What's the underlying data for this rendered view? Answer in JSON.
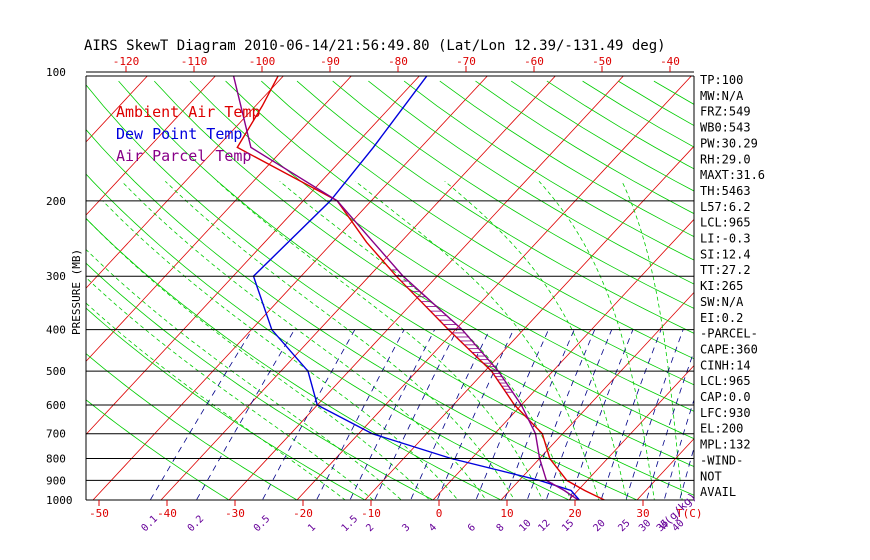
{
  "title": "AIRS SkewT Diagram 2010-06-14/21:56:49.80 (Lat/Lon 12.39/-131.49 deg)",
  "ylabel": "PRESSURE (MB)",
  "legend": [
    {
      "label": "Ambient Air Temp",
      "color": "#dd0000"
    },
    {
      "label": "Dew Point Temp",
      "color": "#0000dd"
    },
    {
      "label": "Air Parcel Temp",
      "color": "#880088"
    }
  ],
  "axis_units_label": "T(C)",
  "mixing_ratio_units_label": "W(g/kg)",
  "indices": [
    "TP:100",
    "MW:N/A",
    "FRZ:549",
    "WB0:543",
    "PW:30.29",
    "RH:29.0",
    "MAXT:31.6",
    "TH:5463",
    "L57:6.2",
    "LCL:965",
    "LI:-0.3",
    "SI:12.4",
    "TT:27.2",
    "KI:265",
    "SW:N/A",
    "EI:0.2",
    "-PARCEL-",
    "CAPE:360",
    "CINH:14",
    "LCL:965",
    "CAP:0.0",
    "LFC:930",
    "EL:200",
    "MPL:132",
    "-WIND-",
    "NOT",
    "AVAIL"
  ],
  "colors": {
    "isobar": "#000000",
    "isotherm": "#dd0000",
    "dry_adiabat": "#00cc00",
    "moist_adiabat": "#00cc00",
    "mixing_ratio": "#000088",
    "axis_labels": "#dd0000",
    "mixing_labels": "#660099",
    "text": "#000000"
  },
  "chart_data": {
    "type": "line",
    "title": "AIRS SkewT Diagram 2010-06-14/21:56:49.80 (Lat/Lon 12.39/-131.49 deg)",
    "ylabel": "PRESSURE (MB)",
    "xlabel": "T(C)",
    "y_scale": "log",
    "pressure_ticks": [
      100,
      200,
      300,
      400,
      500,
      600,
      700,
      800,
      900,
      1000
    ],
    "top_temp_ticks": [
      -120,
      -110,
      -100,
      -90,
      -80,
      -70,
      -60,
      -50,
      -40
    ],
    "bottom_temp_ticks": [
      -50,
      -40,
      -30,
      -20,
      -10,
      0,
      10,
      20,
      30
    ],
    "mixing_ratio_ticks": [
      "0.1",
      "0.2",
      "0.5",
      "1",
      "1.5",
      "2",
      "3",
      "4",
      "6",
      "8",
      "10",
      "12",
      "15",
      "20",
      "25",
      "30",
      "35",
      "40"
    ],
    "series": [
      {
        "name": "Ambient Air Temp",
        "points": [
          [
            100,
            -81
          ],
          [
            120,
            -79
          ],
          [
            150,
            -77
          ],
          [
            200,
            -55
          ],
          [
            250,
            -45
          ],
          [
            300,
            -36
          ],
          [
            400,
            -21
          ],
          [
            500,
            -9
          ],
          [
            600,
            -1
          ],
          [
            700,
            7
          ],
          [
            800,
            11.5
          ],
          [
            900,
            17
          ],
          [
            950,
            21
          ],
          [
            1010,
            26
          ]
        ]
      },
      {
        "name": "Dew Point Temp",
        "points": [
          [
            100,
            -59
          ],
          [
            150,
            -57
          ],
          [
            200,
            -56
          ],
          [
            300,
            -57
          ],
          [
            400,
            -47
          ],
          [
            500,
            -36
          ],
          [
            600,
            -30
          ],
          [
            700,
            -18
          ],
          [
            800,
            -3
          ],
          [
            900,
            13
          ],
          [
            950,
            19
          ],
          [
            1010,
            22
          ]
        ]
      },
      {
        "name": "Air Parcel Temp",
        "points": [
          [
            100,
            -88
          ],
          [
            150,
            -75
          ],
          [
            200,
            -55
          ],
          [
            250,
            -44
          ],
          [
            300,
            -35
          ],
          [
            400,
            -19
          ],
          [
            500,
            -8
          ],
          [
            600,
            0
          ],
          [
            700,
            6
          ],
          [
            800,
            10
          ],
          [
            900,
            14
          ],
          [
            950,
            18
          ],
          [
            1010,
            22
          ]
        ]
      }
    ]
  }
}
